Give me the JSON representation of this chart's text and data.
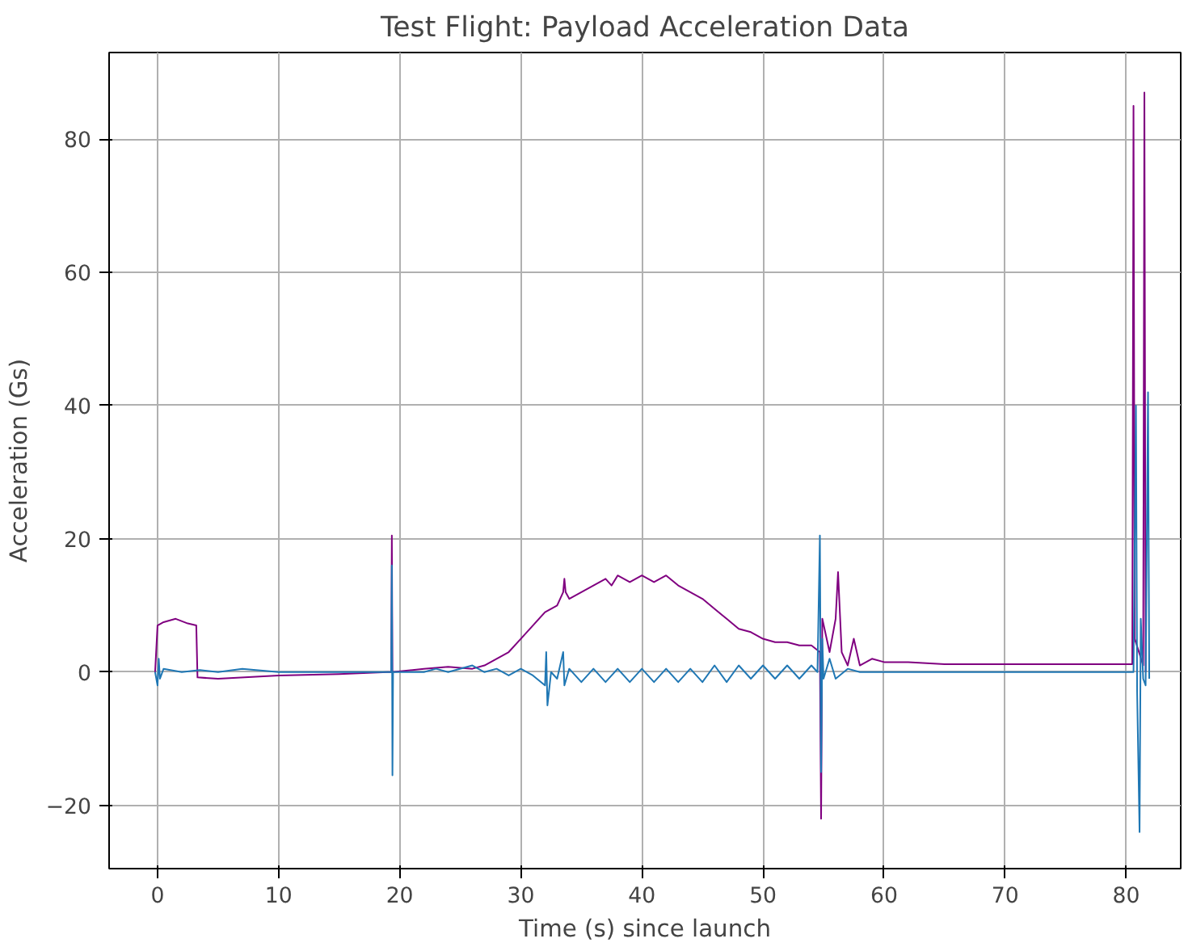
{
  "chart_data": {
    "type": "line",
    "title": "Test Flight: Payload Acceleration Data",
    "xlabel": "Time (s) since launch",
    "ylabel": "Acceleration (Gs)",
    "xlim": [
      -4,
      84.5
    ],
    "ylim": [
      -29.5,
      93
    ],
    "xticks": [
      0,
      10,
      20,
      30,
      40,
      50,
      60,
      70,
      80
    ],
    "yticks": [
      -20,
      0,
      20,
      40,
      60,
      80
    ],
    "grid": true,
    "line_style": "solid",
    "marker": "none",
    "series": [
      {
        "color": "#800080",
        "x": [
          -0.2,
          0,
          0.5,
          1.5,
          2.5,
          3.2,
          3.3,
          5,
          10,
          15,
          19,
          19.3,
          19.35,
          19.4,
          22,
          24,
          26,
          27,
          28,
          29,
          30,
          31,
          32,
          33,
          33.5,
          33.6,
          33.7,
          34,
          35,
          36,
          37,
          37.5,
          38,
          39,
          40,
          41,
          42,
          43,
          44,
          45,
          46,
          47,
          48,
          49,
          50,
          51,
          52,
          53,
          54,
          54.7,
          54.8,
          54.9,
          55.5,
          56,
          56.2,
          56.5,
          57,
          57.5,
          58,
          59,
          60,
          62,
          65,
          70,
          75,
          80,
          80.5,
          80.6,
          80.7,
          81.4,
          81.5,
          81.6
        ],
        "values": [
          0,
          7,
          7.5,
          8,
          7.3,
          7,
          -0.8,
          -1,
          -0.5,
          -0.3,
          0,
          0,
          20.5,
          0,
          0.5,
          0.8,
          0.5,
          1,
          2,
          3,
          5,
          7,
          9,
          10,
          12,
          14,
          12,
          11,
          12,
          13,
          14,
          13,
          14.5,
          13.5,
          14.5,
          13.5,
          14.5,
          13,
          12,
          11,
          9.5,
          8,
          6.5,
          6,
          5,
          4.5,
          4.5,
          4,
          4,
          3,
          -22,
          8,
          3,
          8,
          15,
          3,
          1,
          5,
          1,
          2,
          1.5,
          1.5,
          1.2,
          1.2,
          1.2,
          1.2,
          1.2,
          85,
          5,
          1,
          87,
          0
        ]
      },
      {
        "color": "#1f77b4",
        "x": [
          -0.2,
          0,
          0.1,
          0.2,
          0.5,
          2,
          3.5,
          5,
          7,
          10,
          15,
          19,
          19.3,
          19.35,
          19.4,
          19.45,
          22,
          23,
          24,
          26,
          27,
          28,
          29,
          30,
          31,
          32,
          32.1,
          32.2,
          32.5,
          33,
          33.5,
          33.6,
          34,
          35,
          36,
          37,
          38,
          39,
          40,
          41,
          42,
          43,
          44,
          45,
          46,
          47,
          48,
          49,
          50,
          51,
          52,
          53,
          54,
          54.5,
          54.7,
          54.8,
          54.9,
          55,
          55.5,
          56,
          57,
          58,
          60,
          70,
          80,
          80.6,
          80.8,
          80.9,
          81.1,
          81.2,
          81.4,
          81.6,
          81.8,
          81.9
        ],
        "values": [
          0,
          -2,
          2,
          -1,
          0.5,
          0,
          0.3,
          0,
          0.5,
          0,
          0,
          0,
          0,
          16,
          -15.5,
          0,
          0,
          0.5,
          0,
          1,
          0,
          0.5,
          -0.5,
          0.5,
          -0.5,
          -2,
          3,
          -5,
          0,
          -1,
          3,
          -2,
          0.5,
          -1.5,
          0.5,
          -1.5,
          0.5,
          -1.5,
          0.5,
          -1.5,
          0.5,
          -1.5,
          0.5,
          -1.5,
          1,
          -1.5,
          1,
          -1,
          1,
          -1,
          1,
          -1,
          1,
          0,
          20.5,
          -15,
          5,
          -1,
          2,
          -1,
          0.5,
          0,
          0,
          0,
          0,
          0,
          40,
          -3,
          -24,
          8,
          -1,
          -2,
          42,
          -1
        ]
      }
    ]
  }
}
